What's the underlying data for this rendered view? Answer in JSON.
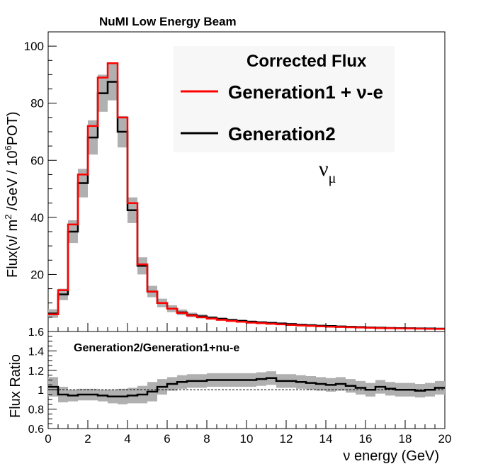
{
  "chart_data": [
    {
      "type": "line",
      "title": "NuMI Low Energy Beam",
      "annotation": "Corrected Flux",
      "ylabel_parts": {
        "pre": "Flux(ν/ m",
        "sup1": "2",
        "mid": " /GeV / 10",
        "sup2": "6",
        "post": "POT)"
      },
      "extra_label": {
        "base": "ν",
        "sub": "μ"
      },
      "xlim": [
        0,
        20
      ],
      "ylim": [
        0,
        105
      ],
      "yticks": [
        20,
        40,
        60,
        80,
        100
      ],
      "bin_width": 0.5,
      "legend": {
        "position": "top-right",
        "entries": [
          {
            "label": "Generation1 +  ν-e",
            "color": "#ff0000"
          },
          {
            "label": "Generation2",
            "color": "#000000"
          }
        ]
      },
      "series": [
        {
          "name": "Generation1 +  ν-e",
          "color": "#ff0000",
          "values": [
            6.0,
            14.5,
            37.5,
            55.0,
            72.0,
            89.0,
            94.0,
            75.0,
            45.0,
            23.5,
            14.0,
            10.0,
            8.0,
            6.5,
            5.6,
            5.0,
            4.5,
            4.1,
            3.7,
            3.4,
            3.1,
            2.9,
            2.7,
            2.5,
            2.3,
            2.1,
            1.95,
            1.8,
            1.7,
            1.6,
            1.5,
            1.4,
            1.3,
            1.2,
            1.15,
            1.1,
            1.05,
            1.0,
            0.95,
            0.9
          ]
        },
        {
          "name": "Generation2",
          "color": "#000000",
          "values": [
            6.3,
            13.0,
            35.0,
            52.0,
            68.0,
            83.5,
            87.5,
            70.0,
            42.5,
            23.0,
            14.0,
            10.0,
            8.0,
            6.7,
            5.8,
            5.3,
            4.8,
            4.4,
            4.0,
            3.7,
            3.4,
            3.2,
            3.0,
            2.8,
            2.6,
            2.35,
            2.2,
            2.0,
            1.9,
            1.75,
            1.65,
            1.55,
            1.45,
            1.35,
            1.25,
            1.2,
            1.15,
            1.1,
            1.05,
            1.0
          ],
          "band_halfwidth": [
            1.5,
            2.0,
            4.0,
            5.0,
            6.0,
            6.5,
            6.5,
            5.5,
            4.5,
            3.0,
            2.0,
            1.5,
            1.2,
            1.0,
            0.8,
            0.7,
            0.6,
            0.6,
            0.5,
            0.5,
            0.5,
            0.4,
            0.4,
            0.4,
            0.4,
            0.35,
            0.35,
            0.3,
            0.3,
            0.3,
            0.3,
            0.25,
            0.25,
            0.25,
            0.25,
            0.25,
            0.2,
            0.2,
            0.2,
            0.2
          ]
        }
      ]
    },
    {
      "type": "line",
      "title": "Generation2/Generation1+nu-e",
      "xlabel": "ν energy (GeV)",
      "ylabel": "Flux Ratio",
      "xlim": [
        0,
        20
      ],
      "ylim": [
        0.6,
        1.6
      ],
      "xticks": [
        0,
        2,
        4,
        6,
        8,
        10,
        12,
        14,
        16,
        18,
        20
      ],
      "yticks": [
        0.6,
        0.8,
        1,
        1.2,
        1.4,
        1.6
      ],
      "reference_line": 1.0,
      "bin_width": 0.5,
      "series": [
        {
          "name": "Generation2/Generation1+nu-e",
          "color": "#000000",
          "values": [
            1.03,
            0.95,
            0.94,
            0.95,
            0.95,
            0.94,
            0.93,
            0.93,
            0.94,
            0.95,
            0.98,
            1.03,
            1.06,
            1.08,
            1.09,
            1.09,
            1.1,
            1.1,
            1.1,
            1.1,
            1.1,
            1.11,
            1.12,
            1.09,
            1.09,
            1.08,
            1.07,
            1.06,
            1.05,
            1.06,
            1.04,
            1.02,
            1.0,
            1.03,
            1.01,
            1.0,
            1.0,
            0.99,
            1.0,
            1.02
          ],
          "band_halfwidth": [
            0.1,
            0.08,
            0.06,
            0.06,
            0.06,
            0.06,
            0.07,
            0.08,
            0.08,
            0.09,
            0.1,
            0.08,
            0.07,
            0.07,
            0.07,
            0.07,
            0.07,
            0.07,
            0.07,
            0.07,
            0.07,
            0.07,
            0.07,
            0.07,
            0.07,
            0.07,
            0.07,
            0.07,
            0.07,
            0.07,
            0.07,
            0.07,
            0.07,
            0.07,
            0.07,
            0.07,
            0.07,
            0.07,
            0.07,
            0.07
          ]
        }
      ]
    }
  ]
}
